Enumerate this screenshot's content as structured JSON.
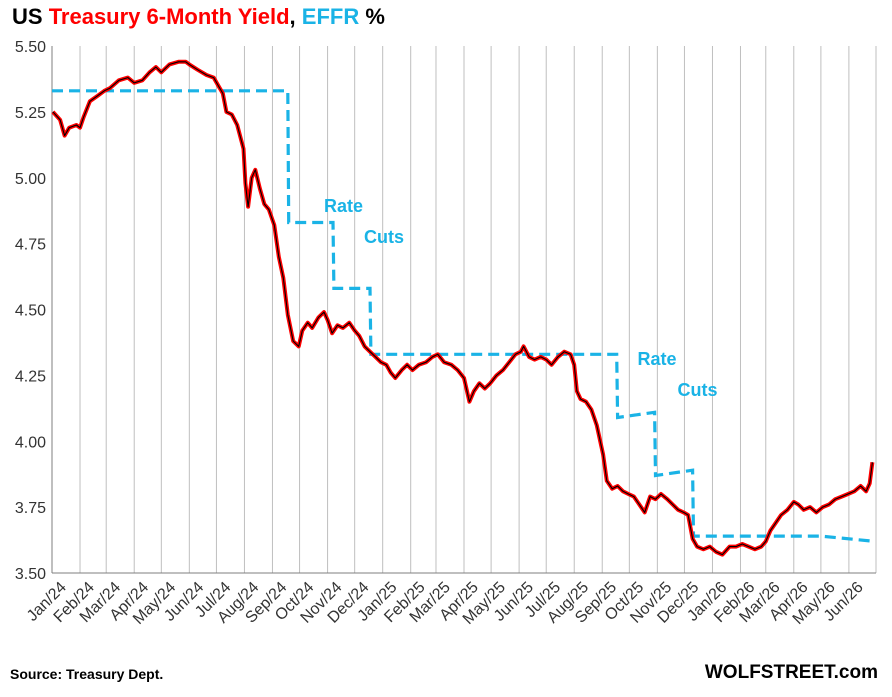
{
  "title": {
    "prefix": "US ",
    "series1": "Treasury 6-Month Yield",
    "sep": ", ",
    "series2": "EFFR",
    "suffix": " %"
  },
  "source": "Source: Treasury Dept.",
  "brand": "WOLFSTREET.com",
  "colors": {
    "yield": "#ff0000",
    "yield_core": "#000000",
    "effr": "#1ab3e6",
    "grid": "#bfbfbf"
  },
  "chart_data": {
    "type": "line",
    "xlabel": "",
    "ylabel": "",
    "ylim": [
      3.5,
      5.5
    ],
    "yticks": [
      "5.50",
      "5.25",
      "5.00",
      "4.75",
      "4.50",
      "4.25",
      "4.00",
      "3.75",
      "3.50"
    ],
    "xticks": [
      "Jan/24",
      "Feb/24",
      "Mar/24",
      "Apr/24",
      "May/24",
      "Jun/24",
      "Jul/24",
      "Aug/24",
      "Sep/24",
      "Oct/24",
      "Nov/24",
      "Dec/24",
      "Jan/25",
      "Feb/25",
      "Mar/25",
      "Apr/25",
      "May/25",
      "Jun/25",
      "Jul/25",
      "Aug/25",
      "Sep/25",
      "Oct/25",
      "Nov/25",
      "Dec/25",
      "Jan/26",
      "Feb/26",
      "Mar/26",
      "Apr/26",
      "May/26",
      "Jun/26"
    ],
    "grid": "vertical",
    "series": [
      {
        "name": "Treasury 6-Month Yield",
        "style": "solid",
        "points": [
          [
            "2024-01-02",
            5.25
          ],
          [
            "2024-01-10",
            5.22
          ],
          [
            "2024-01-15",
            5.16
          ],
          [
            "2024-01-20",
            5.19
          ],
          [
            "2024-01-28",
            5.2
          ],
          [
            "2024-02-01",
            5.19
          ],
          [
            "2024-02-05",
            5.23
          ],
          [
            "2024-02-12",
            5.29
          ],
          [
            "2024-02-20",
            5.31
          ],
          [
            "2024-02-28",
            5.33
          ],
          [
            "2024-03-05",
            5.34
          ],
          [
            "2024-03-15",
            5.37
          ],
          [
            "2024-03-25",
            5.38
          ],
          [
            "2024-04-01",
            5.36
          ],
          [
            "2024-04-10",
            5.37
          ],
          [
            "2024-04-18",
            5.4
          ],
          [
            "2024-04-25",
            5.42
          ],
          [
            "2024-05-01",
            5.4
          ],
          [
            "2024-05-10",
            5.43
          ],
          [
            "2024-05-20",
            5.44
          ],
          [
            "2024-05-28",
            5.44
          ],
          [
            "2024-06-01",
            5.43
          ],
          [
            "2024-06-10",
            5.41
          ],
          [
            "2024-06-20",
            5.39
          ],
          [
            "2024-06-28",
            5.38
          ],
          [
            "2024-07-03",
            5.35
          ],
          [
            "2024-07-08",
            5.32
          ],
          [
            "2024-07-12",
            5.25
          ],
          [
            "2024-07-18",
            5.24
          ],
          [
            "2024-07-24",
            5.2
          ],
          [
            "2024-07-31",
            5.11
          ],
          [
            "2024-08-02",
            4.98
          ],
          [
            "2024-08-05",
            4.89
          ],
          [
            "2024-08-09",
            5.0
          ],
          [
            "2024-08-13",
            5.03
          ],
          [
            "2024-08-18",
            4.96
          ],
          [
            "2024-08-23",
            4.9
          ],
          [
            "2024-08-28",
            4.88
          ],
          [
            "2024-09-03",
            4.82
          ],
          [
            "2024-09-08",
            4.7
          ],
          [
            "2024-09-13",
            4.62
          ],
          [
            "2024-09-18",
            4.48
          ],
          [
            "2024-09-24",
            4.38
          ],
          [
            "2024-09-30",
            4.36
          ],
          [
            "2024-10-04",
            4.42
          ],
          [
            "2024-10-10",
            4.45
          ],
          [
            "2024-10-15",
            4.43
          ],
          [
            "2024-10-22",
            4.47
          ],
          [
            "2024-10-28",
            4.49
          ],
          [
            "2024-11-01",
            4.46
          ],
          [
            "2024-11-06",
            4.41
          ],
          [
            "2024-11-12",
            4.44
          ],
          [
            "2024-11-18",
            4.43
          ],
          [
            "2024-11-25",
            4.45
          ],
          [
            "2024-12-01",
            4.42
          ],
          [
            "2024-12-06",
            4.4
          ],
          [
            "2024-12-12",
            4.36
          ],
          [
            "2024-12-18",
            4.34
          ],
          [
            "2024-12-24",
            4.32
          ],
          [
            "2024-12-30",
            4.3
          ],
          [
            "2025-01-05",
            4.29
          ],
          [
            "2025-01-10",
            4.26
          ],
          [
            "2025-01-15",
            4.24
          ],
          [
            "2025-01-22",
            4.27
          ],
          [
            "2025-01-28",
            4.29
          ],
          [
            "2025-02-03",
            4.27
          ],
          [
            "2025-02-10",
            4.29
          ],
          [
            "2025-02-18",
            4.3
          ],
          [
            "2025-02-25",
            4.32
          ],
          [
            "2025-03-03",
            4.33
          ],
          [
            "2025-03-10",
            4.3
          ],
          [
            "2025-03-18",
            4.29
          ],
          [
            "2025-03-25",
            4.27
          ],
          [
            "2025-04-01",
            4.24
          ],
          [
            "2025-04-07",
            4.15
          ],
          [
            "2025-04-12",
            4.19
          ],
          [
            "2025-04-18",
            4.22
          ],
          [
            "2025-04-24",
            4.2
          ],
          [
            "2025-04-30",
            4.22
          ],
          [
            "2025-05-07",
            4.25
          ],
          [
            "2025-05-14",
            4.27
          ],
          [
            "2025-05-21",
            4.3
          ],
          [
            "2025-05-28",
            4.33
          ],
          [
            "2025-06-03",
            4.34
          ],
          [
            "2025-06-06",
            4.36
          ],
          [
            "2025-06-12",
            4.32
          ],
          [
            "2025-06-18",
            4.31
          ],
          [
            "2025-06-25",
            4.32
          ],
          [
            "2025-07-01",
            4.31
          ],
          [
            "2025-07-07",
            4.29
          ],
          [
            "2025-07-14",
            4.32
          ],
          [
            "2025-07-21",
            4.34
          ],
          [
            "2025-07-28",
            4.33
          ],
          [
            "2025-08-01",
            4.29
          ],
          [
            "2025-08-04",
            4.19
          ],
          [
            "2025-08-08",
            4.16
          ],
          [
            "2025-08-14",
            4.15
          ],
          [
            "2025-08-20",
            4.12
          ],
          [
            "2025-08-26",
            4.06
          ],
          [
            "2025-09-02",
            3.95
          ],
          [
            "2025-09-06",
            3.85
          ],
          [
            "2025-09-12",
            3.82
          ],
          [
            "2025-09-18",
            3.83
          ],
          [
            "2025-09-24",
            3.81
          ],
          [
            "2025-09-30",
            3.8
          ],
          [
            "2025-10-06",
            3.79
          ],
          [
            "2025-10-12",
            3.76
          ],
          [
            "2025-10-18",
            3.73
          ],
          [
            "2025-10-24",
            3.79
          ],
          [
            "2025-10-30",
            3.78
          ],
          [
            "2025-11-05",
            3.8
          ],
          [
            "2025-11-12",
            3.78
          ],
          [
            "2025-11-18",
            3.76
          ],
          [
            "2025-11-24",
            3.74
          ],
          [
            "2025-11-30",
            3.73
          ],
          [
            "2025-12-05",
            3.72
          ],
          [
            "2025-12-10",
            3.63
          ],
          [
            "2025-12-15",
            3.6
          ],
          [
            "2025-12-22",
            3.59
          ],
          [
            "2025-12-29",
            3.6
          ],
          [
            "2026-01-05",
            3.58
          ],
          [
            "2026-01-12",
            3.57
          ],
          [
            "2026-01-20",
            3.6
          ],
          [
            "2026-01-27",
            3.6
          ],
          [
            "2026-02-03",
            3.61
          ],
          [
            "2026-02-10",
            3.6
          ],
          [
            "2026-02-17",
            3.59
          ],
          [
            "2026-02-24",
            3.6
          ],
          [
            "2026-03-01",
            3.62
          ],
          [
            "2026-03-06",
            3.66
          ],
          [
            "2026-03-12",
            3.69
          ],
          [
            "2026-03-18",
            3.72
          ],
          [
            "2026-03-25",
            3.74
          ],
          [
            "2026-04-01",
            3.77
          ],
          [
            "2026-04-06",
            3.76
          ],
          [
            "2026-04-12",
            3.74
          ],
          [
            "2026-04-19",
            3.75
          ],
          [
            "2026-04-26",
            3.73
          ],
          [
            "2026-05-03",
            3.75
          ],
          [
            "2026-05-10",
            3.76
          ],
          [
            "2026-05-17",
            3.78
          ],
          [
            "2026-05-24",
            3.79
          ],
          [
            "2026-05-31",
            3.8
          ],
          [
            "2026-06-07",
            3.81
          ],
          [
            "2026-06-14",
            3.83
          ],
          [
            "2026-06-20",
            3.81
          ],
          [
            "2026-06-24",
            3.84
          ],
          [
            "2026-06-27",
            3.92
          ]
        ]
      },
      {
        "name": "EFFR",
        "style": "dashed",
        "points": [
          [
            "2024-01-01",
            5.33
          ],
          [
            "2024-09-18",
            5.33
          ],
          [
            "2024-09-19",
            4.83
          ],
          [
            "2024-11-07",
            4.83
          ],
          [
            "2024-11-08",
            4.58
          ],
          [
            "2024-12-18",
            4.58
          ],
          [
            "2024-12-19",
            4.33
          ],
          [
            "2025-09-17",
            4.33
          ],
          [
            "2025-09-18",
            4.09
          ],
          [
            "2025-10-29",
            4.11
          ],
          [
            "2025-10-30",
            3.87
          ],
          [
            "2025-12-10",
            3.89
          ],
          [
            "2025-12-11",
            3.64
          ],
          [
            "2026-05-01",
            3.64
          ],
          [
            "2026-06-30",
            3.62
          ]
        ]
      }
    ],
    "annotations": [
      {
        "line1": "Rate",
        "line2": "Cuts",
        "date": "2024-10-28",
        "value": 4.87
      },
      {
        "line1": "Rate",
        "line2": "Cuts",
        "date": "2025-10-10",
        "value": 4.29
      }
    ]
  }
}
